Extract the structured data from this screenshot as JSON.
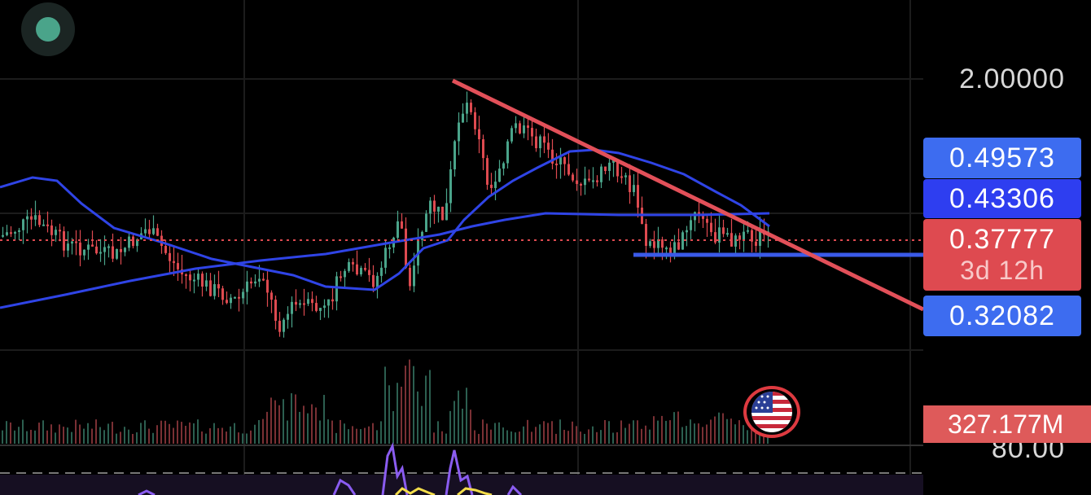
{
  "price_axis": {
    "top_label": "2.00000",
    "sub_label": "80.00"
  },
  "price_tags": {
    "ma_upper": "0.49573",
    "ma_lower": "0.43306",
    "last_price": "0.37777",
    "countdown": "3d 12h",
    "support": "0.32082"
  },
  "volume_tag": "327.177M",
  "colors": {
    "bull": "#4aa48a",
    "bear": "#de4a50",
    "ma_line": "#2f44e6",
    "trendline": "#e25059",
    "support_line": "#3a5ae8",
    "rsi": "#8a5cf0",
    "rsi_ma": "#f3dd4a"
  },
  "icons": {
    "indicator": "indicator-toggle-icon",
    "event": "us-flag-icon"
  }
}
